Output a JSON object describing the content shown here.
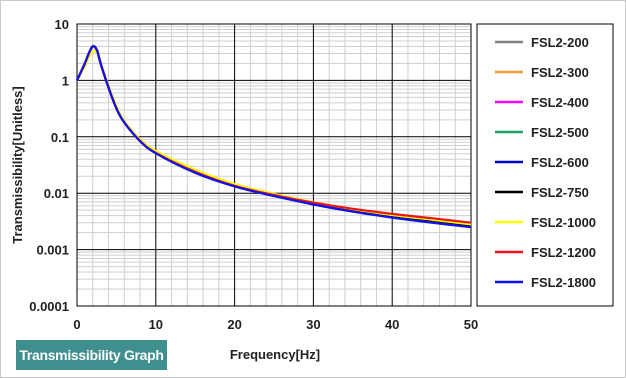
{
  "chart_data": {
    "type": "line",
    "title": "",
    "xlabel": "Frequency[Hz]",
    "ylabel": "Transmissibility[Unitless]",
    "xlim": [
      0,
      50
    ],
    "ylim": [
      0.0001,
      10
    ],
    "yscale": "log",
    "grid": true,
    "legend_position": "right",
    "x_ticks": [
      "0",
      "10",
      "20",
      "30",
      "40",
      "50"
    ],
    "y_ticks": [
      "10",
      "1",
      "0.1",
      "0.01",
      "0.001",
      "0.0001"
    ],
    "x": [
      0,
      1,
      1.5,
      2,
      2.5,
      3,
      4,
      5,
      6,
      8,
      10,
      15,
      20,
      25,
      30,
      35,
      40,
      45,
      50
    ],
    "series": [
      {
        "name": "FSL2-200",
        "color": "#808080",
        "values": [
          1.0,
          2.0,
          3.0,
          4.0,
          3.5,
          2.0,
          0.75,
          0.32,
          0.18,
          0.085,
          0.052,
          0.024,
          0.0135,
          0.0092,
          0.0066,
          0.005,
          0.004,
          0.0033,
          0.0027
        ]
      },
      {
        "name": "FSL2-300",
        "color": "#f39a3c",
        "values": [
          1.0,
          1.8,
          2.6,
          3.3,
          3.1,
          2.0,
          0.8,
          0.35,
          0.19,
          0.09,
          0.056,
          0.026,
          0.0145,
          0.0097,
          0.0069,
          0.0052,
          0.0041,
          0.0034,
          0.0028
        ]
      },
      {
        "name": "FSL2-400",
        "color": "#ff00ff",
        "values": [
          1.0,
          2.0,
          3.0,
          4.0,
          3.5,
          2.0,
          0.75,
          0.32,
          0.18,
          0.085,
          0.052,
          0.024,
          0.0135,
          0.0092,
          0.0066,
          0.005,
          0.004,
          0.0033,
          0.0027
        ]
      },
      {
        "name": "FSL2-500",
        "color": "#1fa36a",
        "values": [
          1.0,
          2.0,
          3.0,
          4.0,
          3.5,
          2.0,
          0.75,
          0.32,
          0.18,
          0.085,
          0.052,
          0.024,
          0.0135,
          0.0092,
          0.0066,
          0.005,
          0.004,
          0.0033,
          0.0027
        ]
      },
      {
        "name": "FSL2-600",
        "color": "#0000c8",
        "values": [
          1.0,
          2.0,
          3.0,
          4.0,
          3.5,
          2.0,
          0.75,
          0.32,
          0.18,
          0.085,
          0.052,
          0.024,
          0.0135,
          0.0092,
          0.0066,
          0.005,
          0.004,
          0.0033,
          0.0027
        ]
      },
      {
        "name": "FSL2-750",
        "color": "#000000",
        "values": [
          1.0,
          2.0,
          3.0,
          4.0,
          3.5,
          2.0,
          0.75,
          0.32,
          0.18,
          0.085,
          0.052,
          0.024,
          0.0135,
          0.0092,
          0.0066,
          0.005,
          0.004,
          0.0033,
          0.0027
        ]
      },
      {
        "name": "FSL2-1000",
        "color": "#ffff00",
        "values": [
          1.0,
          1.8,
          2.6,
          3.3,
          3.1,
          2.0,
          0.8,
          0.35,
          0.19,
          0.09,
          0.056,
          0.026,
          0.0145,
          0.0097,
          0.0069,
          0.0052,
          0.0041,
          0.0034,
          0.0028
        ]
      },
      {
        "name": "FSL2-1200",
        "color": "#e8141c",
        "values": [
          1.0,
          2.0,
          3.0,
          4.0,
          3.5,
          2.0,
          0.75,
          0.32,
          0.18,
          0.085,
          0.052,
          0.024,
          0.0135,
          0.0093,
          0.0068,
          0.0053,
          0.0043,
          0.0036,
          0.003
        ]
      },
      {
        "name": "FSL2-1800",
        "color": "#1010f0",
        "values": [
          1.0,
          2.0,
          3.0,
          4.0,
          3.5,
          2.0,
          0.75,
          0.32,
          0.18,
          0.084,
          0.051,
          0.023,
          0.0132,
          0.0089,
          0.0063,
          0.0047,
          0.0037,
          0.003,
          0.0025
        ]
      }
    ]
  },
  "badge": {
    "label": "Transmissibility Graph"
  }
}
